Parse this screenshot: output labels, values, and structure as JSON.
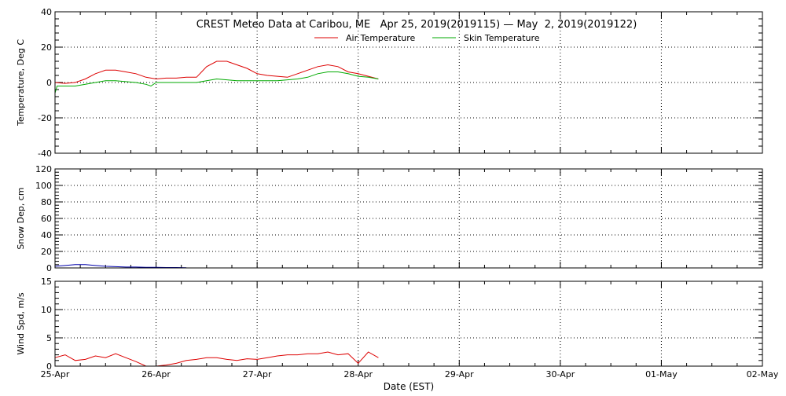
{
  "title": "CREST Meteo Data at Caribou, ME   Apr 25, 2019(2019115) — May  2, 2019(2019122)",
  "xlabel": "Date (EST)",
  "x_ticks": [
    "25-Apr",
    "26-Apr",
    "27-Apr",
    "28-Apr",
    "29-Apr",
    "30-Apr",
    "01-May",
    "02-May"
  ],
  "colors": {
    "air": "#dd0000",
    "skin": "#00aa00",
    "snow": "#0000aa",
    "wind": "#dd0000",
    "axis": "#000000"
  },
  "chart_data": [
    {
      "type": "line",
      "ylabel": "Temperature, Deg C",
      "ylim": [
        -40,
        40
      ],
      "y_ticks": [
        -40,
        -20,
        0,
        20,
        40
      ],
      "grid": true,
      "legend_position": "top-center",
      "series": [
        {
          "name": "Air Temperature",
          "color": "#dd0000",
          "x": [
            0,
            0.1,
            0.2,
            0.3,
            0.4,
            0.5,
            0.6,
            0.7,
            0.8,
            0.9,
            1.0,
            1.1,
            1.2,
            1.3,
            1.4,
            1.5,
            1.6,
            1.7,
            1.8,
            1.9,
            2.0,
            2.1,
            2.2,
            2.3,
            2.4,
            2.5,
            2.6,
            2.7,
            2.8,
            2.9,
            3.0,
            3.1,
            3.2
          ],
          "values": [
            0,
            -0.5,
            0,
            2,
            5,
            7,
            7,
            6,
            5,
            3,
            2,
            2.5,
            2.5,
            3,
            3,
            9,
            12,
            12,
            10,
            8,
            5,
            4,
            3.5,
            3,
            5,
            7,
            9,
            10,
            9,
            6,
            5,
            3.5,
            2
          ]
        },
        {
          "name": "Skin Temperature",
          "color": "#00aa00",
          "x": [
            0,
            0.02,
            0.05,
            0.1,
            0.2,
            0.3,
            0.4,
            0.5,
            0.6,
            0.7,
            0.8,
            0.9,
            0.95,
            1.0,
            1.1,
            1.2,
            1.3,
            1.4,
            1.5,
            1.6,
            1.7,
            1.8,
            1.9,
            2.0,
            2.1,
            2.2,
            2.3,
            2.4,
            2.5,
            2.6,
            2.7,
            2.8,
            2.9,
            3.0,
            3.1,
            3.2
          ],
          "values": [
            -6,
            -2,
            -2,
            -2,
            -2,
            -1,
            0,
            1,
            1,
            0.5,
            0,
            -1,
            -2,
            0,
            0,
            0,
            0,
            0,
            1,
            2,
            1.5,
            1,
            1,
            1,
            1,
            1,
            1.5,
            2,
            3,
            5,
            6,
            6,
            5,
            3.5,
            3,
            2
          ]
        }
      ]
    },
    {
      "type": "line",
      "ylabel": "Snow Dep, cm",
      "ylim": [
        0,
        120
      ],
      "y_ticks": [
        0,
        20,
        40,
        60,
        80,
        100,
        120
      ],
      "grid": true,
      "series": [
        {
          "name": "Snow Depth",
          "color": "#0000aa",
          "x": [
            0,
            0.1,
            0.2,
            0.3,
            0.4,
            0.5,
            0.6,
            0.7,
            0.8,
            0.9,
            1.0,
            1.1,
            1.2,
            1.3
          ],
          "values": [
            2,
            3,
            4,
            4,
            3,
            2,
            1.5,
            1,
            1,
            0.8,
            0.8,
            0.5,
            0.5,
            0.3
          ]
        }
      ]
    },
    {
      "type": "line",
      "ylabel": "Wind Spd, m/s",
      "ylim": [
        0,
        15
      ],
      "y_ticks": [
        0,
        5,
        10,
        15
      ],
      "grid": true,
      "series": [
        {
          "name": "Wind Speed",
          "color": "#dd0000",
          "x": [
            0,
            0.1,
            0.2,
            0.3,
            0.4,
            0.5,
            0.6,
            0.7,
            0.8,
            0.9,
            1.0,
            1.1,
            1.2,
            1.3,
            1.4,
            1.5,
            1.6,
            1.7,
            1.8,
            1.9,
            2.0,
            2.1,
            2.2,
            2.3,
            2.4,
            2.5,
            2.6,
            2.7,
            2.8,
            2.9,
            3.0,
            3.1,
            3.2
          ],
          "values": [
            1.5,
            2,
            1,
            1.2,
            1.8,
            1.5,
            2.2,
            1.5,
            0.8,
            0,
            0,
            0.2,
            0.5,
            1,
            1.2,
            1.5,
            1.5,
            1.2,
            1.0,
            1.3,
            1.2,
            1.5,
            1.8,
            2,
            2,
            2.2,
            2.2,
            2.5,
            2,
            2.2,
            0.5,
            2.5,
            1.5
          ]
        }
      ]
    }
  ]
}
